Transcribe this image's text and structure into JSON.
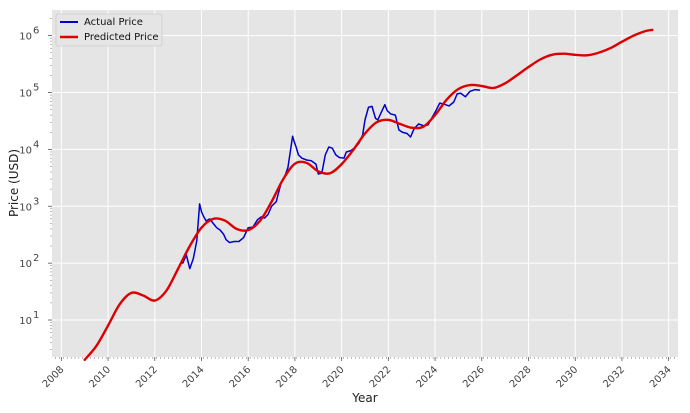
{
  "chart_data": {
    "type": "line",
    "title": "",
    "xlabel": "Year",
    "ylabel": "Price (USD)",
    "xlim": [
      2007.6,
      2034.4
    ],
    "ylim_log10": [
      0.35,
      6.45
    ],
    "yscale": "log",
    "grid": true,
    "legend": {
      "placement": "top-left"
    },
    "x_ticks": [
      "2008",
      "2010",
      "2012",
      "2014",
      "2016",
      "2018",
      "2020",
      "2022",
      "2024",
      "2026",
      "2028",
      "2030",
      "2032",
      "2034"
    ],
    "x_tick_values": [
      2008,
      2010,
      2012,
      2014,
      2016,
      2018,
      2020,
      2022,
      2024,
      2026,
      2028,
      2030,
      2032,
      2034
    ],
    "y_ticks": [
      {
        "base": "10",
        "exp": "1",
        "log": 1
      },
      {
        "base": "10",
        "exp": "2",
        "log": 2
      },
      {
        "base": "10",
        "exp": "3",
        "log": 3
      },
      {
        "base": "10",
        "exp": "4",
        "log": 4
      },
      {
        "base": "10",
        "exp": "5",
        "log": 5
      },
      {
        "base": "10",
        "exp": "6",
        "log": 6
      }
    ],
    "series": [
      {
        "name": "Actual Price",
        "color": "#0000cc",
        "x": [
          2013.2,
          2013.35,
          2013.5,
          2013.65,
          2013.8,
          2013.92,
          2014.0,
          2014.1,
          2014.2,
          2014.35,
          2014.5,
          2014.65,
          2014.8,
          2014.95,
          2015.05,
          2015.2,
          2015.4,
          2015.6,
          2015.8,
          2016.0,
          2016.2,
          2016.4,
          2016.55,
          2016.7,
          2016.85,
          2017.0,
          2017.2,
          2017.4,
          2017.55,
          2017.7,
          2017.8,
          2017.9,
          2017.96,
          2018.05,
          2018.15,
          2018.3,
          2018.5,
          2018.7,
          2018.9,
          2019.0,
          2019.15,
          2019.3,
          2019.45,
          2019.6,
          2019.75,
          2019.9,
          2020.1,
          2020.2,
          2020.4,
          2020.6,
          2020.75,
          2020.9,
          2021.0,
          2021.15,
          2021.3,
          2021.45,
          2021.55,
          2021.7,
          2021.85,
          2021.95,
          2022.1,
          2022.3,
          2022.45,
          2022.6,
          2022.8,
          2022.95,
          2023.1,
          2023.3,
          2023.5,
          2023.7,
          2023.85,
          2024.0,
          2024.2,
          2024.4,
          2024.6,
          2024.8,
          2024.95,
          2025.1,
          2025.3,
          2025.5,
          2025.7,
          2025.9
        ],
        "values": [
          100,
          140,
          80,
          120,
          250,
          1100,
          800,
          650,
          550,
          600,
          500,
          420,
          380,
          320,
          260,
          230,
          240,
          240,
          280,
          420,
          430,
          580,
          650,
          620,
          720,
          1000,
          1200,
          2500,
          3200,
          4800,
          9000,
          17000,
          14000,
          11000,
          8000,
          7000,
          6500,
          6300,
          5500,
          3700,
          3800,
          8000,
          11000,
          10500,
          8000,
          7200,
          7000,
          9000,
          9500,
          11000,
          13000,
          18000,
          33000,
          55000,
          57000,
          35000,
          33000,
          45000,
          61000,
          48000,
          42000,
          40000,
          22000,
          20000,
          19000,
          16500,
          23000,
          28000,
          26000,
          27000,
          35000,
          45000,
          65000,
          62000,
          58000,
          68000,
          95000,
          97000,
          84000,
          105000,
          112000,
          110000
        ]
      },
      {
        "name": "Predicted Price",
        "color": "#dd0000",
        "x": [
          2009.0,
          2009.5,
          2010.0,
          2010.5,
          2011.0,
          2011.5,
          2012.0,
          2012.5,
          2013.0,
          2013.5,
          2014.0,
          2014.5,
          2015.0,
          2015.5,
          2016.0,
          2016.5,
          2017.0,
          2017.5,
          2018.0,
          2018.5,
          2019.0,
          2019.5,
          2020.0,
          2020.5,
          2021.0,
          2021.5,
          2022.0,
          2022.5,
          2023.0,
          2023.5,
          2024.0,
          2024.5,
          2025.0,
          2025.5,
          2026.0,
          2026.5,
          2027.0,
          2027.5,
          2028.0,
          2028.5,
          2029.0,
          2029.5,
          2030.0,
          2030.5,
          2031.0,
          2031.5,
          2032.0,
          2032.5,
          2033.0,
          2033.3
        ],
        "values": [
          2,
          3.5,
          8,
          19,
          30,
          27,
          22,
          33,
          80,
          200,
          420,
          600,
          560,
          400,
          380,
          550,
          1200,
          3000,
          5600,
          5800,
          4100,
          3800,
          5500,
          9800,
          19000,
          30000,
          33000,
          28000,
          24000,
          25000,
          40000,
          75000,
          115000,
          135000,
          130000,
          120000,
          145000,
          200000,
          280000,
          380000,
          460000,
          480000,
          460000,
          450000,
          500000,
          600000,
          780000,
          1000000,
          1200000,
          1260000
        ]
      }
    ]
  }
}
